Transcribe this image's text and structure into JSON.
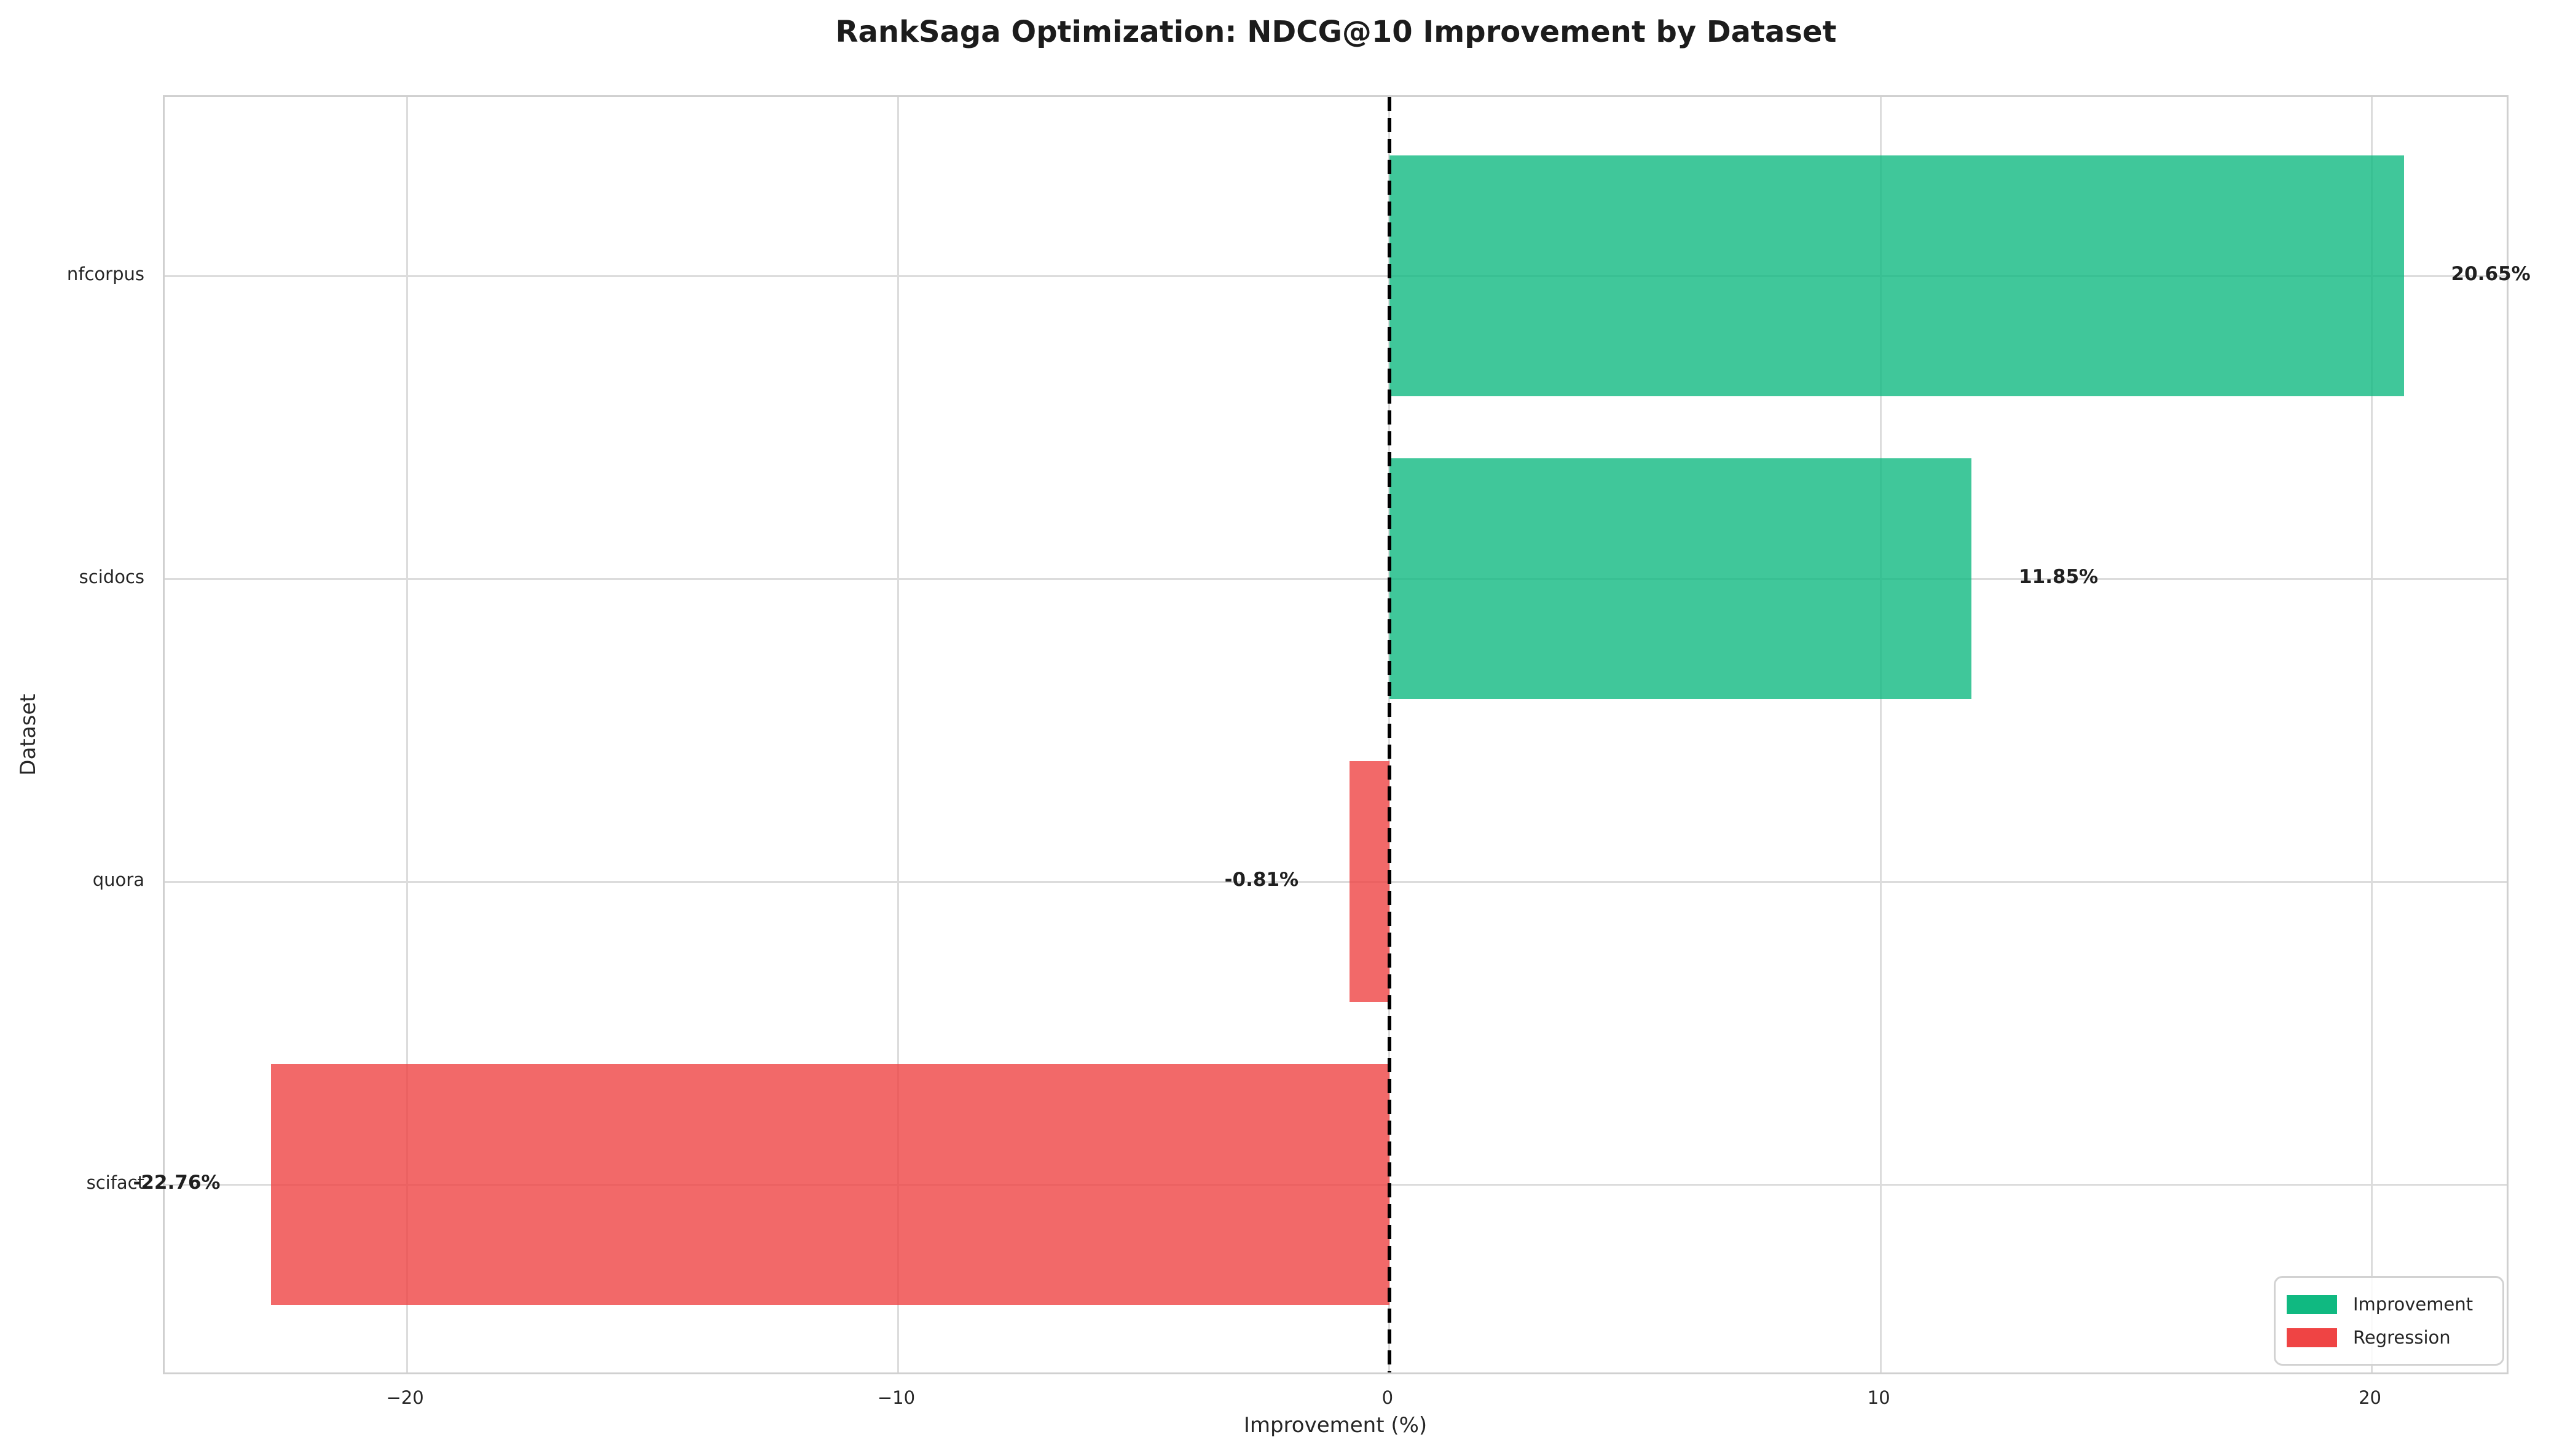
{
  "chart_data": {
    "type": "bar",
    "orientation": "horizontal",
    "title": "RankSaga Optimization: NDCG@10 Improvement by Dataset",
    "xlabel": "Improvement (%)",
    "ylabel": "Dataset",
    "categories": [
      "nfcorpus",
      "scidocs",
      "quora",
      "scifact"
    ],
    "values": [
      20.65,
      11.85,
      -0.81,
      -22.76
    ],
    "value_labels": [
      "20.65%",
      "11.85%",
      "-0.81%",
      "-22.76%"
    ],
    "xlim": [
      -24.93,
      22.82
    ],
    "x_ticks": [
      -20,
      -10,
      0,
      10,
      20
    ],
    "x_tick_labels": [
      "−20",
      "−10",
      "0",
      "10",
      "20"
    ],
    "grid": true,
    "zero_line": {
      "x": 0,
      "style": "dashed",
      "color": "#000000"
    },
    "colors": {
      "improvement": "#10b981",
      "regression": "#ef4444",
      "bar_alpha": 0.8,
      "gridline": "#dcdcdc",
      "border": "#d0d0d0"
    },
    "legend": {
      "position": "lower right",
      "items": [
        {
          "label": "Improvement",
          "color": "#10b981"
        },
        {
          "label": "Regression",
          "color": "#ef4444"
        }
      ]
    }
  }
}
